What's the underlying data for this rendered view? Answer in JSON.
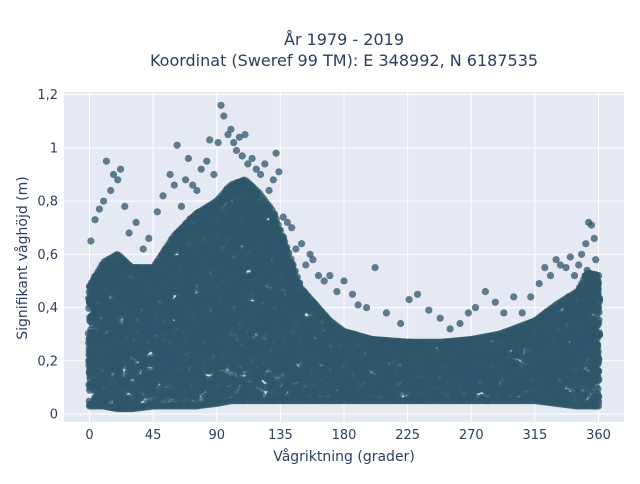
{
  "chart_data": {
    "type": "scatter",
    "title_lines": [
      "År 1979 - 2019",
      "Koordinat (Sweref 99 TM): E 348992, N 6187535"
    ],
    "xlabel": "Vågriktning (grader)",
    "ylabel": "Signifikant våghöjd (m)",
    "xlim": [
      -18,
      378
    ],
    "ylim": [
      -0.03,
      1.21
    ],
    "xticks": [
      0,
      45,
      90,
      135,
      180,
      225,
      270,
      315,
      360
    ],
    "xtick_labels": [
      "0",
      "45",
      "90",
      "135",
      "180",
      "225",
      "270",
      "315",
      "360"
    ],
    "yticks": [
      0,
      0.2,
      0.4,
      0.6,
      0.8,
      1,
      1.2
    ],
    "ytick_labels": [
      "0",
      "0,2",
      "0,4",
      "0,6",
      "0,8",
      "1",
      "1,2"
    ],
    "grid": true,
    "colors": {
      "marker": "#2f5569",
      "plot_bg": "#e5e9f1",
      "grid": "#ffffff",
      "text": "#2a3f5f"
    },
    "series": [
      {
        "envelope": {
          "x": [
            0,
            10,
            20,
            30,
            45,
            60,
            75,
            90,
            100,
            110,
            120,
            130,
            140,
            150,
            160,
            170,
            180,
            200,
            225,
            250,
            270,
            290,
            315,
            330,
            345,
            352,
            360
          ],
          "y_upper": [
            0.48,
            0.57,
            0.6,
            0.55,
            0.55,
            0.67,
            0.75,
            0.8,
            0.86,
            0.88,
            0.83,
            0.76,
            0.62,
            0.47,
            0.41,
            0.35,
            0.31,
            0.28,
            0.27,
            0.27,
            0.28,
            0.3,
            0.35,
            0.41,
            0.46,
            0.53,
            0.52
          ],
          "y_lower": [
            0.03,
            0.03,
            0.02,
            0.02,
            0.03,
            0.03,
            0.03,
            0.04,
            0.05,
            0.05,
            0.05,
            0.05,
            0.05,
            0.05,
            0.05,
            0.05,
            0.05,
            0.05,
            0.05,
            0.05,
            0.05,
            0.05,
            0.05,
            0.04,
            0.03,
            0.03,
            0.03
          ]
        },
        "outliers": [
          [
            1,
            0.65
          ],
          [
            4,
            0.73
          ],
          [
            7,
            0.77
          ],
          [
            10,
            0.8
          ],
          [
            12,
            0.95
          ],
          [
            15,
            0.84
          ],
          [
            17,
            0.9
          ],
          [
            20,
            0.88
          ],
          [
            22,
            0.92
          ],
          [
            25,
            0.78
          ],
          [
            28,
            0.68
          ],
          [
            33,
            0.72
          ],
          [
            38,
            0.62
          ],
          [
            42,
            0.66
          ],
          [
            48,
            0.76
          ],
          [
            52,
            0.82
          ],
          [
            57,
            0.9
          ],
          [
            60,
            0.86
          ],
          [
            62,
            1.01
          ],
          [
            65,
            0.78
          ],
          [
            68,
            0.88
          ],
          [
            70,
            0.96
          ],
          [
            73,
            0.86
          ],
          [
            76,
            0.84
          ],
          [
            79,
            0.92
          ],
          [
            83,
            0.95
          ],
          [
            85,
            1.03
          ],
          [
            88,
            0.9
          ],
          [
            91,
            1.02
          ],
          [
            93,
            1.16
          ],
          [
            95,
            1.12
          ],
          [
            98,
            1.05
          ],
          [
            100,
            1.07
          ],
          [
            102,
            1.02
          ],
          [
            104,
            0.99
          ],
          [
            106,
            1.04
          ],
          [
            108,
            0.97
          ],
          [
            110,
            1.05
          ],
          [
            112,
            0.94
          ],
          [
            115,
            0.96
          ],
          [
            118,
            0.92
          ],
          [
            121,
            0.9
          ],
          [
            124,
            0.94
          ],
          [
            127,
            0.84
          ],
          [
            130,
            0.88
          ],
          [
            132,
            0.98
          ],
          [
            134,
            0.91
          ],
          [
            137,
            0.74
          ],
          [
            140,
            0.72
          ],
          [
            143,
            0.7
          ],
          [
            146,
            0.62
          ],
          [
            150,
            0.64
          ],
          [
            153,
            0.56
          ],
          [
            156,
            0.6
          ],
          [
            158,
            0.58
          ],
          [
            162,
            0.52
          ],
          [
            166,
            0.5
          ],
          [
            170,
            0.52
          ],
          [
            175,
            0.46
          ],
          [
            180,
            0.5
          ],
          [
            186,
            0.45
          ],
          [
            190,
            0.41
          ],
          [
            196,
            0.4
          ],
          [
            202,
            0.55
          ],
          [
            210,
            0.38
          ],
          [
            220,
            0.34
          ],
          [
            226,
            0.43
          ],
          [
            232,
            0.45
          ],
          [
            240,
            0.39
          ],
          [
            248,
            0.36
          ],
          [
            255,
            0.32
          ],
          [
            262,
            0.34
          ],
          [
            268,
            0.38
          ],
          [
            273,
            0.4
          ],
          [
            280,
            0.46
          ],
          [
            287,
            0.42
          ],
          [
            293,
            0.38
          ],
          [
            300,
            0.44
          ],
          [
            306,
            0.38
          ],
          [
            312,
            0.44
          ],
          [
            318,
            0.49
          ],
          [
            322,
            0.55
          ],
          [
            326,
            0.52
          ],
          [
            330,
            0.58
          ],
          [
            333,
            0.56
          ],
          [
            337,
            0.55
          ],
          [
            340,
            0.59
          ],
          [
            343,
            0.52
          ],
          [
            346,
            0.56
          ],
          [
            348,
            0.6
          ],
          [
            351,
            0.64
          ],
          [
            353,
            0.72
          ],
          [
            355,
            0.71
          ],
          [
            357,
            0.66
          ],
          [
            352,
            0.54
          ],
          [
            358,
            0.58
          ]
        ]
      }
    ]
  }
}
